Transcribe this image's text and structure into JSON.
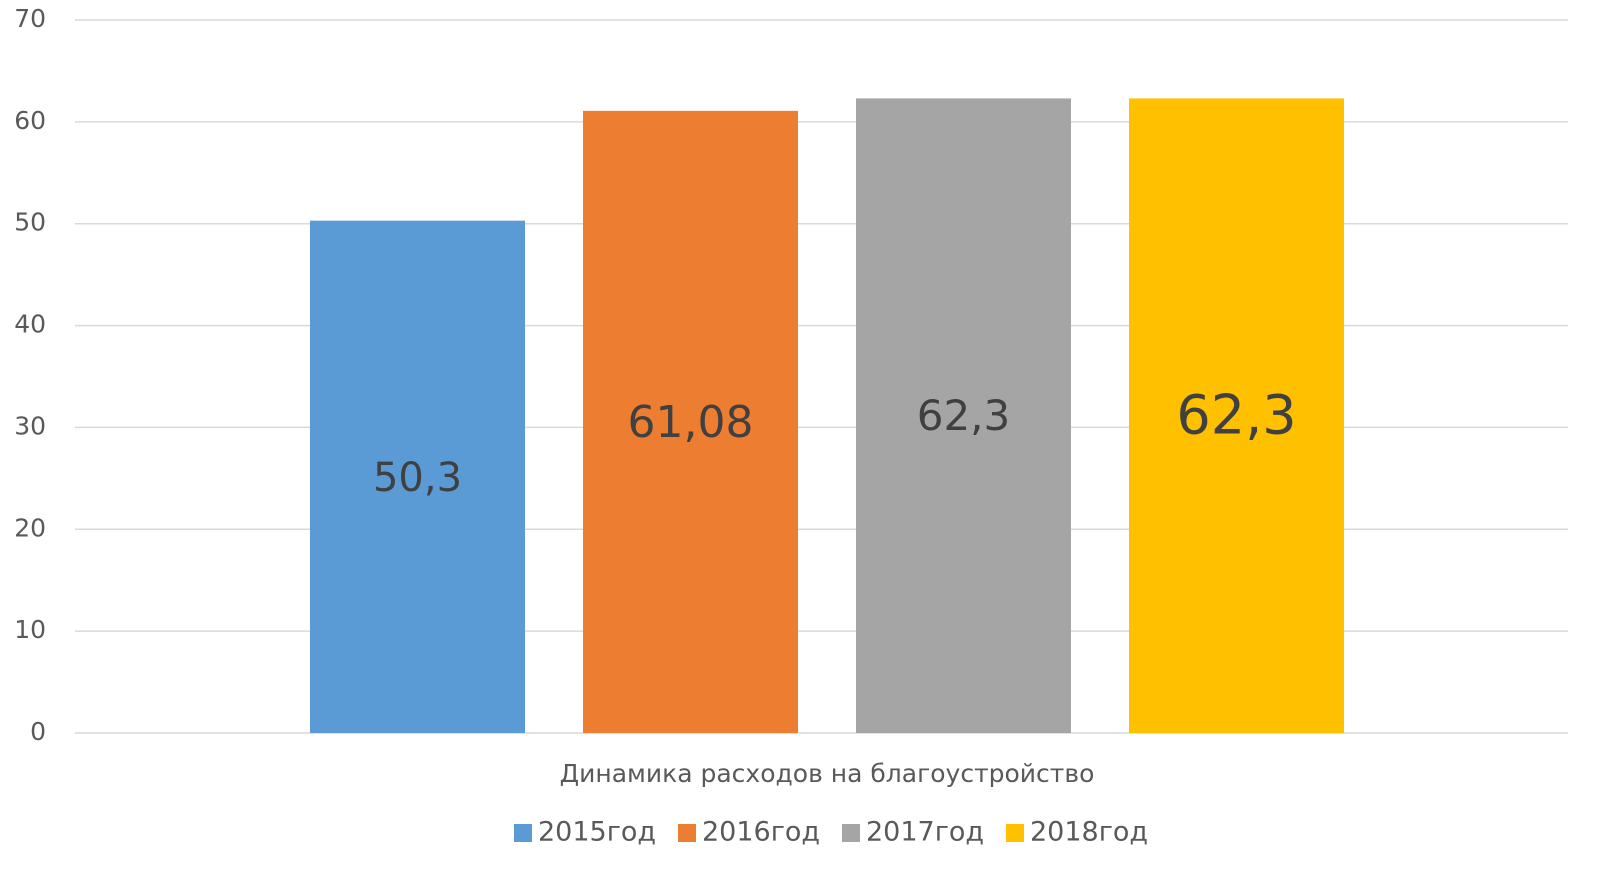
{
  "chart_data": {
    "type": "bar",
    "categories": [
      "Динамика расходов на благоустройство"
    ],
    "series": [
      {
        "name": "2015год",
        "color": "#5b9bd5",
        "values": [
          50.3
        ],
        "value_labels": [
          "50,3"
        ]
      },
      {
        "name": "2016год",
        "color": "#ed7d31",
        "values": [
          61.08
        ],
        "value_labels": [
          "61,08"
        ]
      },
      {
        "name": "2017год",
        "color": "#a5a5a5",
        "values": [
          62.3
        ],
        "value_labels": [
          "62,3"
        ]
      },
      {
        "name": "2018год",
        "color": "#ffc000",
        "values": [
          62.3
        ],
        "value_labels": [
          "62,3"
        ]
      }
    ],
    "ylim": [
      0,
      70
    ],
    "yticks": [
      0,
      10,
      20,
      30,
      40,
      50,
      60,
      70
    ],
    "grid": true,
    "legend": "bottom"
  }
}
